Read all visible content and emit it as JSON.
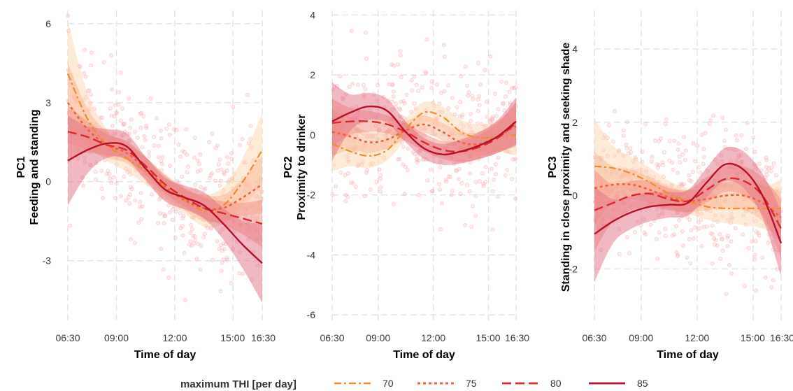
{
  "chart_data": [
    {
      "type": "line",
      "panel": "PC1",
      "ylabel_lines": [
        "PC1",
        "Feeding and standing"
      ],
      "xlabel": "Time of day",
      "x_ticks": [
        "06:30",
        "09:00",
        "12:00",
        "15:00",
        "16:30"
      ],
      "y_ticks": [
        "-3",
        "0",
        "3",
        "6"
      ],
      "y_tick_values": [
        -3,
        0,
        3,
        6
      ],
      "ylim": [
        -5.4,
        6.5
      ],
      "x_hours": [
        6.5,
        9,
        12,
        15,
        16.5
      ],
      "series": [
        {
          "name": "70",
          "x": [
            6.5,
            7.5,
            8.5,
            9.5,
            10.5,
            11.5,
            12.5,
            13.5,
            14.5,
            15.5,
            16.5
          ],
          "y": [
            4.1,
            2.4,
            1.4,
            0.9,
            0.4,
            -0.2,
            -0.7,
            -1.1,
            -0.9,
            0.0,
            1.2
          ],
          "band": [
            2.0,
            1.0,
            0.6,
            0.5,
            0.5,
            0.5,
            0.5,
            0.6,
            0.7,
            0.9,
            1.4
          ]
        },
        {
          "name": "75",
          "x": [
            6.5,
            7.5,
            8.5,
            9.5,
            10.5,
            11.5,
            12.5,
            13.5,
            14.5,
            15.5,
            16.5
          ],
          "y": [
            3.0,
            2.0,
            1.4,
            1.1,
            0.5,
            -0.2,
            -0.7,
            -1.0,
            -1.0,
            -0.6,
            -0.1
          ],
          "band": [
            1.5,
            0.8,
            0.5,
            0.4,
            0.4,
            0.4,
            0.4,
            0.5,
            0.5,
            0.7,
            1.1
          ]
        },
        {
          "name": "80",
          "x": [
            6.5,
            7.5,
            8.5,
            9.5,
            10.5,
            11.5,
            12.5,
            13.5,
            14.5,
            15.5,
            16.5
          ],
          "y": [
            1.9,
            1.7,
            1.4,
            1.2,
            0.6,
            -0.1,
            -0.6,
            -1.0,
            -1.2,
            -1.4,
            -1.6
          ],
          "band": [
            1.0,
            0.6,
            0.4,
            0.35,
            0.35,
            0.35,
            0.35,
            0.4,
            0.45,
            0.6,
            0.9
          ]
        },
        {
          "name": "85",
          "x": [
            6.5,
            7.5,
            8.5,
            9.5,
            10.5,
            11.5,
            12.5,
            13.5,
            14.5,
            15.5,
            16.5
          ],
          "y": [
            0.8,
            1.2,
            1.45,
            1.35,
            0.5,
            -0.3,
            -0.6,
            -0.9,
            -1.6,
            -2.4,
            -3.1
          ],
          "band": [
            1.7,
            0.9,
            0.55,
            0.5,
            0.45,
            0.45,
            0.45,
            0.5,
            0.6,
            0.9,
            1.5
          ]
        }
      ]
    },
    {
      "type": "line",
      "panel": "PC2",
      "ylabel_lines": [
        "PC2",
        "Proximity to drinker"
      ],
      "xlabel": "Time of day",
      "x_ticks": [
        "06:30",
        "09:00",
        "12:00",
        "15:00",
        "16:30"
      ],
      "y_ticks": [
        "-6",
        "-4",
        "-2",
        "0",
        "2",
        "4"
      ],
      "y_tick_values": [
        -6,
        -4,
        -2,
        0,
        2,
        4
      ],
      "ylim": [
        -6.3,
        4.15
      ],
      "x_hours": [
        6.5,
        9,
        12,
        15,
        16.5
      ],
      "series": [
        {
          "name": "70",
          "x": [
            6.5,
            7.5,
            8.5,
            9.5,
            10.5,
            11.5,
            12.5,
            13.5,
            14.5,
            15.5,
            16.5
          ],
          "y": [
            -0.3,
            -0.55,
            -0.7,
            -0.5,
            0.2,
            0.75,
            0.6,
            0.1,
            -0.1,
            -0.05,
            0.0
          ],
          "band": [
            0.9,
            0.5,
            0.4,
            0.35,
            0.35,
            0.35,
            0.35,
            0.4,
            0.45,
            0.5,
            0.7
          ]
        },
        {
          "name": "75",
          "x": [
            6.5,
            7.5,
            8.5,
            9.5,
            10.5,
            11.5,
            12.5,
            13.5,
            14.5,
            15.5,
            16.5
          ],
          "y": [
            0.1,
            -0.05,
            -0.25,
            -0.15,
            0.15,
            0.35,
            0.1,
            -0.25,
            -0.3,
            -0.05,
            0.3
          ],
          "band": [
            0.8,
            0.45,
            0.35,
            0.3,
            0.3,
            0.3,
            0.3,
            0.35,
            0.4,
            0.5,
            0.7
          ]
        },
        {
          "name": "80",
          "x": [
            6.5,
            7.5,
            8.5,
            9.5,
            10.5,
            11.5,
            12.5,
            13.5,
            14.5,
            15.5,
            16.5
          ],
          "y": [
            0.4,
            0.45,
            0.45,
            0.35,
            0.1,
            -0.25,
            -0.5,
            -0.55,
            -0.4,
            -0.1,
            0.4
          ],
          "band": [
            0.8,
            0.45,
            0.35,
            0.3,
            0.3,
            0.3,
            0.3,
            0.35,
            0.4,
            0.5,
            0.7
          ]
        },
        {
          "name": "85",
          "x": [
            6.5,
            7.5,
            8.5,
            9.5,
            10.5,
            11.5,
            12.5,
            13.5,
            14.5,
            15.5,
            16.5
          ],
          "y": [
            0.45,
            0.75,
            0.95,
            0.8,
            0.1,
            -0.45,
            -0.65,
            -0.55,
            -0.35,
            -0.05,
            0.45
          ],
          "band": [
            1.3,
            0.6,
            0.45,
            0.4,
            0.35,
            0.35,
            0.35,
            0.4,
            0.45,
            0.55,
            0.8
          ]
        }
      ]
    },
    {
      "type": "line",
      "panel": "PC3",
      "ylabel_lines": [
        "PC3",
        "Standing in close proximity and seeking shade"
      ],
      "xlabel": "Time of day",
      "x_ticks": [
        "06:30",
        "09:00",
        "12:00",
        "15:00",
        "16:30"
      ],
      "y_ticks": [
        "-2",
        "0",
        "2",
        "4"
      ],
      "y_tick_values": [
        -2,
        0,
        2,
        4
      ],
      "ylim": [
        -3.5,
        5.05
      ],
      "x_hours": [
        6.5,
        9,
        12,
        15,
        16.5
      ],
      "series": [
        {
          "name": "70",
          "x": [
            6.5,
            7.5,
            8.5,
            9.5,
            10.5,
            11.5,
            12.5,
            13.5,
            14.5,
            15.5,
            16.5
          ],
          "y": [
            0.8,
            0.75,
            0.6,
            0.35,
            0.05,
            -0.15,
            -0.3,
            -0.35,
            -0.35,
            -0.35,
            -0.35
          ],
          "band": [
            1.3,
            0.6,
            0.45,
            0.4,
            0.35,
            0.35,
            0.35,
            0.4,
            0.45,
            0.55,
            0.8
          ]
        },
        {
          "name": "75",
          "x": [
            6.5,
            7.5,
            8.5,
            9.5,
            10.5,
            11.5,
            12.5,
            13.5,
            14.5,
            15.5,
            16.5
          ],
          "y": [
            0.2,
            0.3,
            0.3,
            0.15,
            -0.05,
            -0.15,
            -0.1,
            0.0,
            0.0,
            -0.2,
            -0.6
          ],
          "band": [
            1.0,
            0.5,
            0.4,
            0.35,
            0.3,
            0.3,
            0.3,
            0.35,
            0.4,
            0.5,
            0.7
          ]
        },
        {
          "name": "80",
          "x": [
            6.5,
            7.5,
            8.5,
            9.5,
            10.5,
            11.5,
            12.5,
            13.5,
            14.5,
            15.5,
            16.5
          ],
          "y": [
            -0.4,
            -0.2,
            0.0,
            0.05,
            -0.1,
            -0.15,
            0.15,
            0.45,
            0.4,
            0.0,
            -0.9
          ],
          "band": [
            1.1,
            0.5,
            0.4,
            0.35,
            0.3,
            0.3,
            0.35,
            0.35,
            0.4,
            0.5,
            0.8
          ]
        },
        {
          "name": "85",
          "x": [
            6.5,
            7.5,
            8.5,
            9.5,
            10.5,
            11.5,
            12.5,
            13.5,
            14.5,
            15.5,
            16.5
          ],
          "y": [
            -1.05,
            -0.7,
            -0.45,
            -0.3,
            -0.25,
            -0.2,
            0.35,
            0.85,
            0.7,
            0.0,
            -1.3
          ],
          "band": [
            1.3,
            0.6,
            0.45,
            0.4,
            0.35,
            0.35,
            0.4,
            0.45,
            0.5,
            0.6,
            0.9
          ]
        }
      ]
    }
  ],
  "legend": {
    "title": "maximum THI [per day]",
    "items": [
      "70",
      "75",
      "80",
      "85"
    ]
  },
  "colors": {
    "70": "#f28c28",
    "75": "#f0623a",
    "80": "#dc2a2a",
    "85": "#b5122b",
    "band_70": "#fdd8b0",
    "band_75": "#f9b796",
    "band_80": "#f28f80",
    "band_85": "#e36f85",
    "points": "#f4a3a8",
    "grid": "#e3e3e3"
  }
}
